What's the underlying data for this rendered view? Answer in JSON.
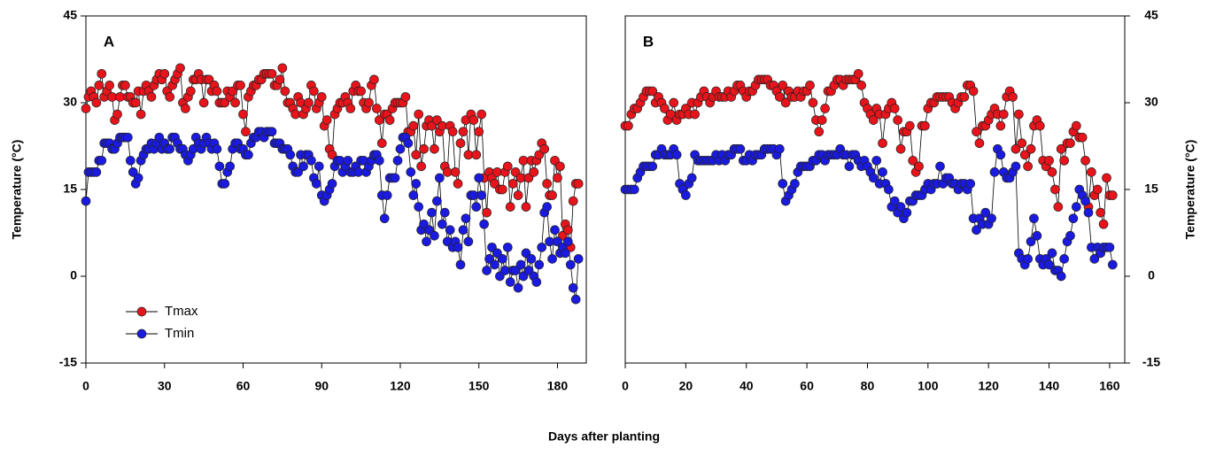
{
  "xlabel": "Days after planting",
  "chart_data": [
    {
      "type": "scatter-line",
      "title": "A",
      "ylabel": "Temperature (°C)",
      "axis_side": "left",
      "legend": true,
      "legend_position": "lower left",
      "xlim": [
        0,
        191
      ],
      "xticks": [
        0,
        30,
        60,
        90,
        120,
        150,
        180
      ],
      "ylim": [
        -15,
        45
      ],
      "yticks": [
        -15,
        0,
        15,
        30,
        45
      ],
      "x": [
        0,
        1,
        2,
        3,
        4,
        5,
        6,
        7,
        8,
        9,
        10,
        11,
        12,
        13,
        14,
        15,
        16,
        17,
        18,
        19,
        20,
        21,
        22,
        23,
        24,
        25,
        26,
        27,
        28,
        29,
        30,
        31,
        32,
        33,
        34,
        35,
        36,
        37,
        38,
        39,
        40,
        41,
        42,
        43,
        44,
        45,
        46,
        47,
        48,
        49,
        50,
        51,
        52,
        53,
        54,
        55,
        56,
        57,
        58,
        59,
        60,
        61,
        62,
        63,
        64,
        65,
        66,
        67,
        68,
        69,
        70,
        71,
        72,
        73,
        74,
        75,
        76,
        77,
        78,
        79,
        80,
        81,
        82,
        83,
        84,
        85,
        86,
        87,
        88,
        89,
        90,
        91,
        92,
        93,
        94,
        95,
        96,
        97,
        98,
        99,
        100,
        101,
        102,
        103,
        104,
        105,
        106,
        107,
        108,
        109,
        110,
        111,
        112,
        113,
        114,
        115,
        116,
        117,
        118,
        119,
        120,
        121,
        122,
        123,
        124,
        125,
        126,
        127,
        128,
        129,
        130,
        131,
        132,
        133,
        134,
        135,
        136,
        137,
        138,
        139,
        140,
        141,
        142,
        143,
        144,
        145,
        146,
        147,
        148,
        149,
        150,
        151,
        152,
        153,
        154,
        155,
        156,
        157,
        158,
        159,
        160,
        161,
        162,
        163,
        164,
        165,
        166,
        167,
        168,
        169,
        170,
        171,
        172,
        173,
        174,
        175,
        176,
        177,
        178,
        179,
        180,
        181,
        182,
        183,
        184,
        185,
        186,
        187,
        188
      ],
      "series": [
        {
          "name": "Tmax",
          "color": "#e8141b",
          "values": [
            29,
            31,
            32,
            31,
            30,
            33,
            35,
            31,
            32,
            33,
            31,
            27,
            28,
            31,
            33,
            33,
            31,
            31,
            30,
            30,
            32,
            28,
            32,
            33,
            32,
            31,
            33,
            34,
            35,
            34,
            35,
            32,
            31,
            33,
            34,
            35,
            36,
            30,
            29,
            31,
            32,
            34,
            34,
            35,
            34,
            30,
            34,
            34,
            32,
            33,
            32,
            30,
            30,
            30,
            32,
            31,
            32,
            30,
            33,
            33,
            28,
            25,
            31,
            32,
            33,
            33,
            34,
            34,
            35,
            35,
            35,
            35,
            33,
            33,
            34,
            36,
            32,
            30,
            30,
            29,
            28,
            31,
            30,
            28,
            29,
            30,
            33,
            32,
            29,
            30,
            31,
            26,
            27,
            22,
            21,
            28,
            29,
            30,
            30,
            31,
            30,
            29,
            32,
            33,
            32,
            32,
            30,
            29,
            30,
            33,
            34,
            29,
            27,
            23,
            28,
            28,
            27,
            29,
            30,
            30,
            30,
            30,
            31,
            25,
            25,
            26,
            21,
            28,
            19,
            22,
            26,
            27,
            26,
            22,
            27,
            25,
            26,
            19,
            18,
            26,
            25,
            18,
            16,
            23,
            25,
            27,
            21,
            28,
            27,
            21,
            25,
            28,
            17,
            11,
            18,
            17,
            16,
            18,
            15,
            15,
            18,
            19,
            12,
            16,
            18,
            14,
            17,
            20,
            12,
            17,
            20,
            18,
            20,
            21,
            23,
            22,
            16,
            14,
            14,
            20,
            17,
            19,
            7,
            9,
            8,
            5,
            13,
            16,
            16
          ]
        },
        {
          "name": "Tmin",
          "color": "#1a1ae0",
          "values": [
            13,
            18,
            18,
            18,
            18,
            20,
            20,
            23,
            23,
            23,
            22,
            22,
            23,
            24,
            24,
            24,
            24,
            20,
            18,
            16,
            17,
            20,
            21,
            22,
            22,
            23,
            22,
            23,
            24,
            22,
            23,
            22,
            22,
            24,
            24,
            23,
            22,
            22,
            21,
            20,
            21,
            22,
            24,
            23,
            22,
            23,
            24,
            23,
            22,
            23,
            22,
            19,
            16,
            16,
            18,
            19,
            22,
            23,
            23,
            22,
            22,
            21,
            21,
            23,
            24,
            24,
            25,
            25,
            24,
            25,
            25,
            25,
            23,
            23,
            23,
            22,
            22,
            22,
            21,
            19,
            18,
            18,
            21,
            19,
            21,
            21,
            20,
            17,
            16,
            19,
            14,
            13,
            14,
            15,
            16,
            19,
            20,
            20,
            18,
            19,
            20,
            18,
            18,
            19,
            18,
            20,
            20,
            18,
            19,
            20,
            21,
            21,
            20,
            14,
            10,
            14,
            17,
            17,
            17,
            20,
            22,
            24,
            24,
            23,
            18,
            14,
            16,
            12,
            8,
            9,
            6,
            8,
            11,
            7,
            13,
            17,
            9,
            11,
            6,
            8,
            5,
            6,
            5,
            2,
            8,
            10,
            6,
            14,
            14,
            12,
            17,
            14,
            9,
            1,
            3,
            5,
            2,
            4,
            0,
            3,
            1,
            5,
            -1,
            1,
            1,
            -2,
            2,
            0,
            4,
            1,
            3,
            0,
            -1,
            2,
            5,
            11,
            12,
            6,
            3,
            8,
            6,
            4,
            5,
            4,
            6,
            2,
            -2,
            -4,
            3
          ]
        }
      ]
    },
    {
      "type": "scatter-line",
      "title": "B",
      "ylabel": "Temperature (°C)",
      "axis_side": "right",
      "legend": false,
      "xlim": [
        0,
        165
      ],
      "xticks": [
        0,
        20,
        40,
        60,
        80,
        100,
        120,
        140,
        160
      ],
      "ylim": [
        -15,
        45
      ],
      "yticks": [
        -15,
        0,
        15,
        30,
        45
      ],
      "x": [
        0,
        1,
        2,
        3,
        4,
        5,
        6,
        7,
        8,
        9,
        10,
        11,
        12,
        13,
        14,
        15,
        16,
        17,
        18,
        19,
        20,
        21,
        22,
        23,
        24,
        25,
        26,
        27,
        28,
        29,
        30,
        31,
        32,
        33,
        34,
        35,
        36,
        37,
        38,
        39,
        40,
        41,
        42,
        43,
        44,
        45,
        46,
        47,
        48,
        49,
        50,
        51,
        52,
        53,
        54,
        55,
        56,
        57,
        58,
        59,
        60,
        61,
        62,
        63,
        64,
        65,
        66,
        67,
        68,
        69,
        70,
        71,
        72,
        73,
        74,
        75,
        76,
        77,
        78,
        79,
        80,
        81,
        82,
        83,
        84,
        85,
        86,
        87,
        88,
        89,
        90,
        91,
        92,
        93,
        94,
        95,
        96,
        97,
        98,
        99,
        100,
        101,
        102,
        103,
        104,
        105,
        106,
        107,
        108,
        109,
        110,
        111,
        112,
        113,
        114,
        115,
        116,
        117,
        118,
        119,
        120,
        121,
        122,
        123,
        124,
        125,
        126,
        127,
        128,
        129,
        130,
        131,
        132,
        133,
        134,
        135,
        136,
        137,
        138,
        139,
        140,
        141,
        142,
        143,
        144,
        145,
        146,
        147,
        148,
        149,
        150,
        151,
        152,
        153,
        154,
        155,
        156,
        157,
        158,
        159,
        160,
        161
      ],
      "series": [
        {
          "color": "#e8141b",
          "values": [
            26,
            26,
            28,
            29,
            29,
            30,
            31,
            32,
            32,
            32,
            30,
            31,
            30,
            29,
            27,
            28,
            30,
            27,
            28,
            28,
            29,
            28,
            30,
            28,
            30,
            31,
            32,
            31,
            30,
            31,
            32,
            31,
            31,
            31,
            32,
            31,
            32,
            33,
            33,
            32,
            31,
            32,
            32,
            33,
            34,
            34,
            34,
            34,
            33,
            33,
            32,
            31,
            33,
            30,
            32,
            31,
            31,
            32,
            31,
            32,
            32,
            33,
            30,
            27,
            25,
            27,
            29,
            32,
            32,
            33,
            34,
            34,
            33,
            34,
            34,
            34,
            34,
            35,
            33,
            30,
            29,
            28,
            27,
            29,
            28,
            23,
            28,
            29,
            30,
            29,
            27,
            22,
            25,
            25,
            26,
            20,
            18,
            19,
            26,
            26,
            29,
            30,
            30,
            31,
            31,
            31,
            31,
            31,
            30,
            29,
            30,
            31,
            31,
            33,
            33,
            32,
            25,
            23,
            26,
            26,
            27,
            28,
            29,
            28,
            26,
            28,
            31,
            32,
            31,
            22,
            28,
            23,
            21,
            19,
            22,
            26,
            27,
            26,
            20,
            19,
            20,
            18,
            15,
            12,
            22,
            20,
            23,
            23,
            25,
            26,
            24,
            24,
            20,
            12,
            18,
            14,
            15,
            11,
            9,
            17,
            14,
            14
          ]
        },
        {
          "color": "#1a1ae0",
          "values": [
            15,
            15,
            15,
            15,
            17,
            18,
            19,
            19,
            19,
            19,
            21,
            21,
            22,
            21,
            21,
            21,
            22,
            21,
            16,
            15,
            14,
            16,
            17,
            21,
            20,
            20,
            20,
            20,
            20,
            20,
            21,
            20,
            21,
            20,
            21,
            21,
            22,
            22,
            22,
            20,
            20,
            21,
            20,
            21,
            21,
            21,
            22,
            22,
            22,
            22,
            21,
            22,
            16,
            13,
            14,
            15,
            16,
            18,
            19,
            19,
            19,
            19,
            20,
            20,
            21,
            21,
            20,
            21,
            21,
            21,
            21,
            22,
            21,
            21,
            19,
            21,
            21,
            20,
            19,
            20,
            19,
            18,
            17,
            20,
            16,
            18,
            16,
            15,
            12,
            13,
            11,
            12,
            10,
            11,
            13,
            13,
            14,
            14,
            14,
            15,
            16,
            15,
            16,
            16,
            19,
            16,
            17,
            17,
            16,
            16,
            15,
            16,
            16,
            15,
            16,
            10,
            8,
            10,
            9,
            11,
            9,
            10,
            18,
            22,
            21,
            18,
            17,
            17,
            18,
            19,
            4,
            3,
            2,
            3,
            6,
            10,
            7,
            3,
            2,
            3,
            2,
            4,
            1,
            1,
            0,
            3,
            6,
            7,
            10,
            12,
            15,
            14,
            13,
            11,
            5,
            3,
            5,
            4,
            5,
            5,
            5,
            2
          ]
        }
      ]
    }
  ]
}
